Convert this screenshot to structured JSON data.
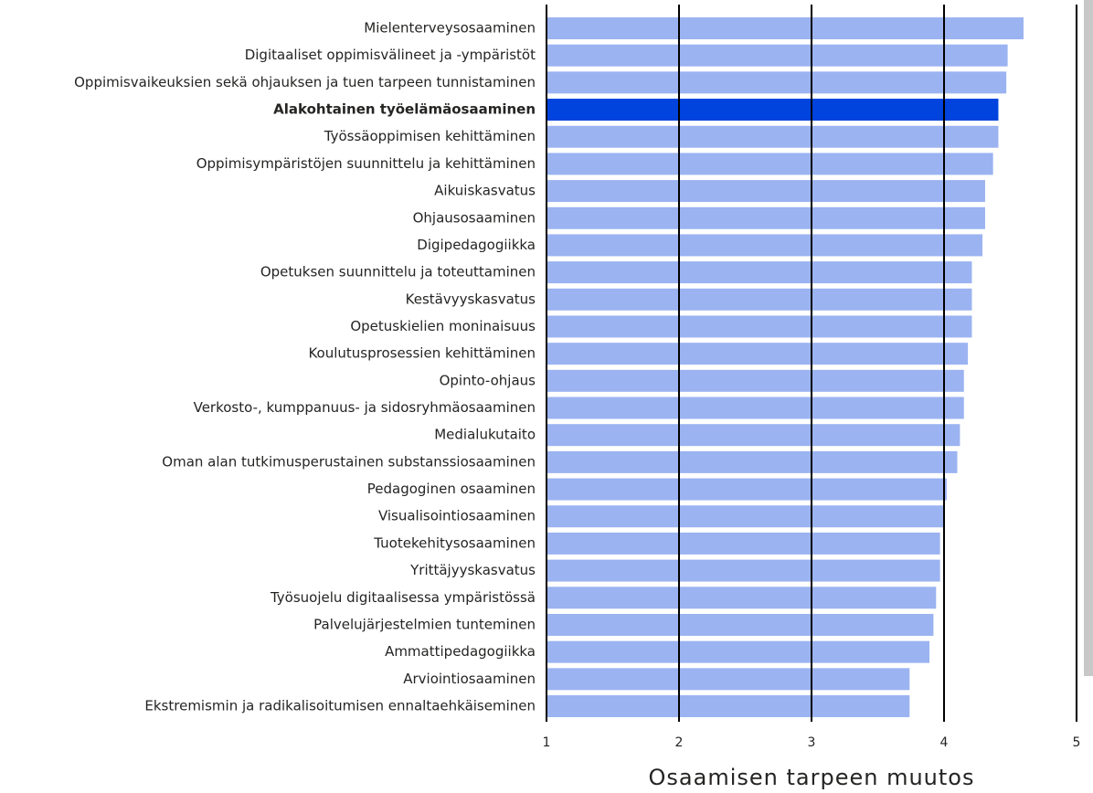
{
  "chart_data": {
    "type": "barh",
    "x_label": "Osaamisen tarpeen muutos",
    "categories": [
      "Mielenterveysosaaminen",
      "Digitaaliset oppimisvälineet ja -ympäristöt",
      "Oppimisvaikeuksien sekä ohjauksen ja tuen tarpeen tunnistaminen",
      "Alakohtainen työelämäosaaminen",
      "Työssäoppimisen kehittäminen",
      "Oppimisympäristöjen suunnittelu ja kehittäminen",
      "Aikuiskasvatus",
      "Ohjausosaaminen",
      "Digipedagogiikka",
      "Opetuksen suunnittelu ja toteuttaminen",
      "Kestävyyskasvatus",
      "Opetuskielien moninaisuus",
      "Koulutusprosessien kehittäminen",
      "Opinto-ohjaus",
      "Verkosto-, kumppanuus- ja sidosryhmäosaaminen",
      "Medialukutaito",
      "Oman alan tutkimusperustainen substanssiosaaminen",
      "Pedagoginen osaaminen",
      "Visualisointiosaaminen",
      "Tuotekehitysosaaminen",
      "Yrittäjyyskasvatus",
      "Työsuojelu digitaalisessa ympäristössä",
      "Palvelujärjestelmien tunteminen",
      "Ammattipedagogiikka",
      "Arviointiosaaminen",
      "Ekstremismin ja radikalisoitumisen ennaltaehkäiseminen"
    ],
    "values": [
      4.6,
      4.48,
      4.47,
      4.41,
      4.41,
      4.37,
      4.31,
      4.31,
      4.29,
      4.21,
      4.21,
      4.21,
      4.18,
      4.15,
      4.15,
      4.12,
      4.1,
      4.02,
      4.0,
      3.97,
      3.97,
      3.94,
      3.92,
      3.89,
      3.74,
      3.74
    ],
    "color": "#9bb3f1",
    "highlight": 3,
    "highlight_color": "#0043dd",
    "xlim": [
      1,
      5
    ],
    "xticks": [
      1,
      2,
      3,
      4,
      5
    ],
    "grid": true
  }
}
